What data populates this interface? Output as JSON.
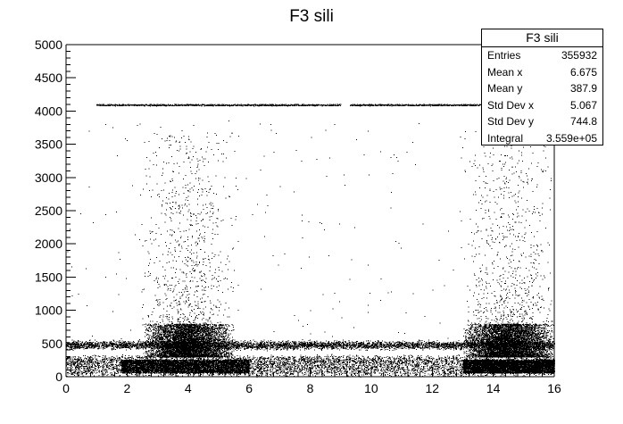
{
  "chart_data": {
    "type": "scatter",
    "title": "F3 sili",
    "xlabel": "",
    "ylabel": "",
    "xlim": [
      0,
      16
    ],
    "ylim": [
      0,
      5000
    ],
    "xticks": [
      0,
      2,
      4,
      6,
      8,
      10,
      12,
      14,
      16
    ],
    "yticks": [
      0,
      500,
      1000,
      1500,
      2000,
      2500,
      3000,
      3500,
      4000,
      4500,
      5000
    ],
    "grid": false,
    "stats_box": {
      "title": "F3 sili",
      "position": "top-right",
      "rows": [
        {
          "label": "Entries",
          "value": "355932"
        },
        {
          "label": "Mean x",
          "value": "6.675"
        },
        {
          "label": "Mean y",
          "value": "387.9"
        },
        {
          "label": "Std Dev x",
          "value": "5.067"
        },
        {
          "label": "Std Dev y",
          "value": "744.8"
        },
        {
          "label": "Integral",
          "value": "3.559e+05"
        }
      ]
    },
    "features": {
      "saturation_band": {
        "y": 4096,
        "x_ranges": [
          [
            1.0,
            9.0
          ],
          [
            9.3,
            13.7
          ]
        ]
      },
      "dense_band_y_range": [
        50,
        300
      ],
      "mid_band_y": 480,
      "spread_regions_x": [
        [
          2.5,
          5.5
        ],
        [
          13.0,
          16.0
        ]
      ]
    }
  },
  "colors": {
    "axis": "#000000",
    "points": "#000000",
    "background": "#ffffff"
  }
}
